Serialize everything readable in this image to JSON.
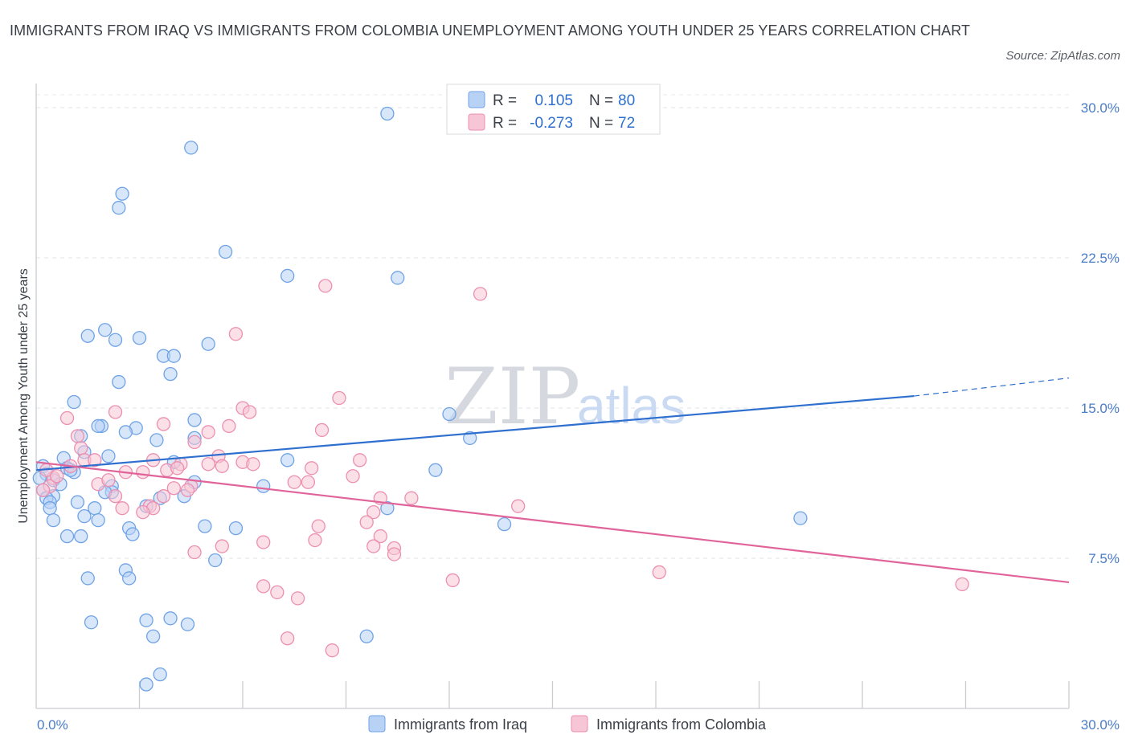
{
  "chart_data": {
    "type": "scatter",
    "title": "IMMIGRANTS FROM IRAQ VS IMMIGRANTS FROM COLOMBIA UNEMPLOYMENT AMONG YOUTH UNDER 25 YEARS CORRELATION CHART",
    "source": "Source: ZipAtlas.com",
    "xlabel": "",
    "ylabel": "Unemployment Among Youth under 25 years",
    "xlim": [
      0,
      30
    ],
    "ylim": [
      0,
      30
    ],
    "x_tick_labels": [
      "0.0%",
      "30.0%"
    ],
    "y_ticks": [
      7.5,
      15.0,
      22.5,
      30.0
    ],
    "y_tick_labels": [
      "7.5%",
      "15.0%",
      "22.5%",
      "30.0%"
    ],
    "grid": true,
    "watermark": {
      "zip": "ZIP",
      "atlas": "atlas"
    },
    "legend_position": "top-center",
    "legend": {
      "r_label": "R =",
      "n_label": "N =",
      "entries": [
        {
          "r": "0.105",
          "n": "80"
        },
        {
          "r": "-0.273",
          "n": "72"
        }
      ]
    },
    "series": [
      {
        "name": "Immigrants from Iraq",
        "color": "#6fa3e6",
        "fill": "#b8d2f5",
        "line_color": "#2e6fcf",
        "trend": {
          "x0": 0,
          "y0": 11.9,
          "x1": 25.5,
          "y1": 15.6,
          "dash_x1": 30,
          "dash_y1": 16.5
        },
        "points": [
          [
            10.2,
            29.7
          ],
          [
            4.5,
            28.0
          ],
          [
            2.5,
            25.7
          ],
          [
            2.4,
            25.0
          ],
          [
            5.5,
            22.8
          ],
          [
            7.3,
            21.6
          ],
          [
            10.5,
            21.5
          ],
          [
            2.0,
            18.9
          ],
          [
            1.5,
            18.6
          ],
          [
            2.3,
            18.4
          ],
          [
            3.0,
            18.5
          ],
          [
            5.0,
            18.2
          ],
          [
            3.7,
            17.6
          ],
          [
            4.0,
            17.6
          ],
          [
            3.9,
            16.7
          ],
          [
            2.4,
            16.3
          ],
          [
            1.1,
            15.3
          ],
          [
            12.0,
            14.7
          ],
          [
            4.6,
            14.4
          ],
          [
            1.9,
            14.1
          ],
          [
            1.8,
            14.1
          ],
          [
            2.9,
            14.0
          ],
          [
            2.6,
            13.8
          ],
          [
            1.3,
            13.6
          ],
          [
            3.5,
            13.4
          ],
          [
            4.6,
            13.5
          ],
          [
            12.6,
            13.5
          ],
          [
            1.4,
            12.8
          ],
          [
            2.1,
            12.6
          ],
          [
            0.8,
            12.5
          ],
          [
            7.3,
            12.4
          ],
          [
            4.0,
            12.3
          ],
          [
            0.2,
            12.1
          ],
          [
            0.9,
            12.0
          ],
          [
            1.1,
            11.8
          ],
          [
            0.3,
            11.7
          ],
          [
            0.1,
            11.5
          ],
          [
            11.6,
            11.9
          ],
          [
            1.0,
            11.9
          ],
          [
            0.5,
            11.4
          ],
          [
            0.7,
            11.2
          ],
          [
            2.2,
            11.1
          ],
          [
            6.6,
            11.1
          ],
          [
            2.2,
            10.8
          ],
          [
            2.0,
            10.8
          ],
          [
            0.2,
            10.9
          ],
          [
            0.5,
            10.6
          ],
          [
            0.3,
            10.5
          ],
          [
            4.3,
            10.6
          ],
          [
            3.6,
            10.5
          ],
          [
            1.2,
            10.3
          ],
          [
            0.4,
            10.3
          ],
          [
            0.4,
            10.0
          ],
          [
            10.2,
            10.0
          ],
          [
            1.7,
            10.0
          ],
          [
            3.2,
            10.1
          ],
          [
            1.4,
            9.6
          ],
          [
            1.8,
            9.4
          ],
          [
            0.5,
            9.4
          ],
          [
            22.2,
            9.5
          ],
          [
            13.6,
            9.2
          ],
          [
            2.7,
            9.0
          ],
          [
            4.9,
            9.1
          ],
          [
            5.8,
            9.0
          ],
          [
            0.9,
            8.6
          ],
          [
            1.3,
            8.6
          ],
          [
            2.8,
            8.7
          ],
          [
            5.2,
            7.4
          ],
          [
            2.6,
            6.9
          ],
          [
            1.5,
            6.5
          ],
          [
            2.7,
            6.5
          ],
          [
            1.6,
            4.3
          ],
          [
            3.2,
            4.4
          ],
          [
            3.9,
            4.5
          ],
          [
            4.4,
            4.2
          ],
          [
            3.4,
            3.6
          ],
          [
            9.6,
            3.6
          ],
          [
            3.6,
            1.7
          ],
          [
            3.2,
            1.2
          ],
          [
            4.6,
            11.3
          ]
        ]
      },
      {
        "name": "Immigrants from Colombia",
        "color": "#ec8fb0",
        "fill": "#f7c6d6",
        "line_color": "#e0649a",
        "trend": {
          "x0": 0,
          "y0": 12.3,
          "x1": 30,
          "y1": 6.3
        },
        "points": [
          [
            8.4,
            21.1
          ],
          [
            12.9,
            20.7
          ],
          [
            5.8,
            18.7
          ],
          [
            8.8,
            15.5
          ],
          [
            6.0,
            15.0
          ],
          [
            6.2,
            14.8
          ],
          [
            2.3,
            14.8
          ],
          [
            0.9,
            14.5
          ],
          [
            3.7,
            14.2
          ],
          [
            5.6,
            14.1
          ],
          [
            8.3,
            13.9
          ],
          [
            5.0,
            13.8
          ],
          [
            1.2,
            13.6
          ],
          [
            4.6,
            13.3
          ],
          [
            1.3,
            13.0
          ],
          [
            5.3,
            12.6
          ],
          [
            1.4,
            12.4
          ],
          [
            9.4,
            12.4
          ],
          [
            1.7,
            12.4
          ],
          [
            3.4,
            12.4
          ],
          [
            6.0,
            12.3
          ],
          [
            6.3,
            12.2
          ],
          [
            5.0,
            12.2
          ],
          [
            4.2,
            12.2
          ],
          [
            5.4,
            12.1
          ],
          [
            8.0,
            12.0
          ],
          [
            3.8,
            11.9
          ],
          [
            3.1,
            11.8
          ],
          [
            2.6,
            11.8
          ],
          [
            9.2,
            11.6
          ],
          [
            0.5,
            11.5
          ],
          [
            7.5,
            11.3
          ],
          [
            7.9,
            11.3
          ],
          [
            4.5,
            11.1
          ],
          [
            4.0,
            11.0
          ],
          [
            1.8,
            11.2
          ],
          [
            4.4,
            10.9
          ],
          [
            0.4,
            11.1
          ],
          [
            0.2,
            10.9
          ],
          [
            2.3,
            10.6
          ],
          [
            3.7,
            10.6
          ],
          [
            10.0,
            10.5
          ],
          [
            10.9,
            10.5
          ],
          [
            3.3,
            10.1
          ],
          [
            2.5,
            10.0
          ],
          [
            3.4,
            10.0
          ],
          [
            3.1,
            9.8
          ],
          [
            9.8,
            9.8
          ],
          [
            14.0,
            10.1
          ],
          [
            9.6,
            9.3
          ],
          [
            8.2,
            9.1
          ],
          [
            10.0,
            8.6
          ],
          [
            8.1,
            8.4
          ],
          [
            6.6,
            8.3
          ],
          [
            9.8,
            8.1
          ],
          [
            10.4,
            8.0
          ],
          [
            5.4,
            8.1
          ],
          [
            10.4,
            7.7
          ],
          [
            4.6,
            7.8
          ],
          [
            18.1,
            6.8
          ],
          [
            12.1,
            6.4
          ],
          [
            26.9,
            6.2
          ],
          [
            6.6,
            6.1
          ],
          [
            7.0,
            5.8
          ],
          [
            7.6,
            5.5
          ],
          [
            7.3,
            3.5
          ],
          [
            8.6,
            2.9
          ],
          [
            0.3,
            11.9
          ],
          [
            0.6,
            11.6
          ],
          [
            2.1,
            11.4
          ],
          [
            4.1,
            12.0
          ],
          [
            1.0,
            12.1
          ]
        ]
      }
    ]
  }
}
